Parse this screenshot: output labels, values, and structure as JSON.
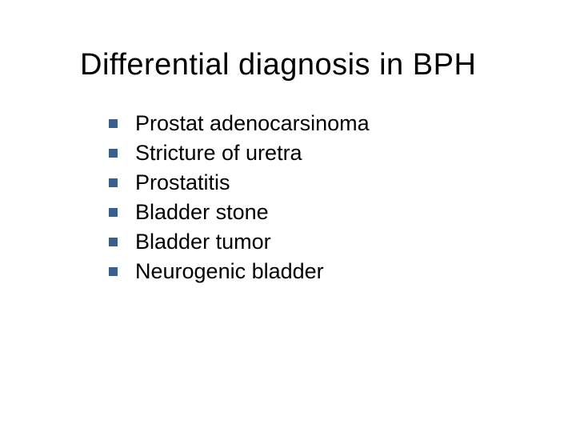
{
  "slide": {
    "title": "Differential diagnosis in BPH",
    "title_fontsize": 38,
    "title_color": "#000000",
    "background_color": "#ffffff",
    "bullet_color": "#3a5f8f",
    "bullet_size": 11,
    "item_fontsize": 27,
    "item_color": "#000000",
    "font_family": "Verdana",
    "items": [
      "Prostat adenocarsinoma",
      "Stricture of uretra",
      "Prostatitis",
      "Bladder stone",
      "Bladder tumor",
      "Neurogenic bladder"
    ]
  }
}
